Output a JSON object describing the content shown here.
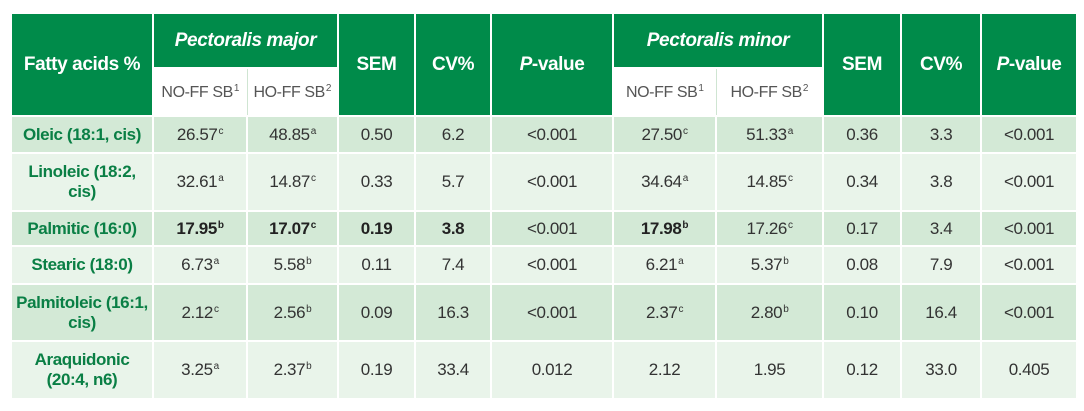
{
  "header": {
    "top": [
      {
        "text": "Fatty acids %"
      },
      {
        "em": "Pectoralis major",
        "sub": [
          {
            "text": "NO-FF SB",
            "sup": "1"
          },
          {
            "text": "HO-FF SB",
            "sup": "2"
          }
        ]
      },
      {
        "text": "SEM"
      },
      {
        "text": "CV%"
      },
      {
        "em": "P",
        "text": "-value"
      },
      {
        "em": "Pectoralis minor",
        "sub": [
          {
            "text": "NO-FF SB",
            "sup": "1"
          },
          {
            "text": "HO-FF SB",
            "sup": "2"
          }
        ]
      },
      {
        "text": "SEM"
      },
      {
        "text": "CV%"
      },
      {
        "em": "P",
        "text": "-value"
      }
    ]
  },
  "table": {
    "rows": [
      {
        "label": "Oleic (18:1, cis)",
        "cells": [
          {
            "text": "26.57",
            "sup": "c"
          },
          {
            "text": "48.85",
            "sup": "a"
          },
          {
            "text": "0.50"
          },
          {
            "text": "6.2"
          },
          {
            "text": "<0.001"
          },
          {
            "text": "27.50",
            "sup": "c"
          },
          {
            "text": "51.33",
            "sup": "a"
          },
          {
            "text": "0.36"
          },
          {
            "text": "3.3"
          },
          {
            "text": "<0.001"
          }
        ]
      },
      {
        "label": "Linoleic (18:2, cis)",
        "cells": [
          {
            "text": "32.61",
            "sup": "a"
          },
          {
            "text": "14.87",
            "sup": "c"
          },
          {
            "text": "0.33"
          },
          {
            "text": "5.7"
          },
          {
            "text": "<0.001"
          },
          {
            "text": "34.64",
            "sup": "a"
          },
          {
            "text": "14.85",
            "sup": "c"
          },
          {
            "text": "0.34"
          },
          {
            "text": "3.8"
          },
          {
            "text": "<0.001"
          }
        ]
      },
      {
        "label": "Palmitic (16:0)",
        "cells": [
          {
            "text": "17.95",
            "sup": "b",
            "bold": true
          },
          {
            "text": "17.07",
            "sup": "c",
            "bold": true
          },
          {
            "text": "0.19",
            "bold": true
          },
          {
            "text": "3.8",
            "bold": true
          },
          {
            "text": "<0.001"
          },
          {
            "text": "17.98",
            "sup": "b",
            "bold": true
          },
          {
            "text": "17.26",
            "sup": "c"
          },
          {
            "text": "0.17"
          },
          {
            "text": "3.4"
          },
          {
            "text": "<0.001"
          }
        ]
      },
      {
        "label": "Stearic (18:0)",
        "cells": [
          {
            "text": "6.73",
            "sup": "a"
          },
          {
            "text": "5.58",
            "sup": "b"
          },
          {
            "text": "0.11"
          },
          {
            "text": "7.4"
          },
          {
            "text": "<0.001"
          },
          {
            "text": "6.21",
            "sup": "a"
          },
          {
            "text": "5.37",
            "sup": "b"
          },
          {
            "text": "0.08"
          },
          {
            "text": "7.9"
          },
          {
            "text": "<0.001"
          }
        ]
      },
      {
        "label": "Palmitoleic (16:1, cis)",
        "cells": [
          {
            "text": "2.12",
            "sup": "c"
          },
          {
            "text": "2.56",
            "sup": "b"
          },
          {
            "text": "0.09"
          },
          {
            "text": "16.3"
          },
          {
            "text": "<0.001"
          },
          {
            "text": "2.37",
            "sup": "c"
          },
          {
            "text": "2.80",
            "sup": "b"
          },
          {
            "text": "0.10"
          },
          {
            "text": "16.4"
          },
          {
            "text": "<0.001"
          }
        ]
      },
      {
        "label": "Araquidonic (20:4, n6)",
        "cells": [
          {
            "text": "3.25",
            "sup": "a"
          },
          {
            "text": "2.37",
            "sup": "b"
          },
          {
            "text": "0.19"
          },
          {
            "text": "33.4"
          },
          {
            "text": "0.012"
          },
          {
            "text": "2.12"
          },
          {
            "text": "1.95"
          },
          {
            "text": "0.12"
          },
          {
            "text": "33.0"
          },
          {
            "text": "0.405"
          }
        ]
      }
    ]
  }
}
